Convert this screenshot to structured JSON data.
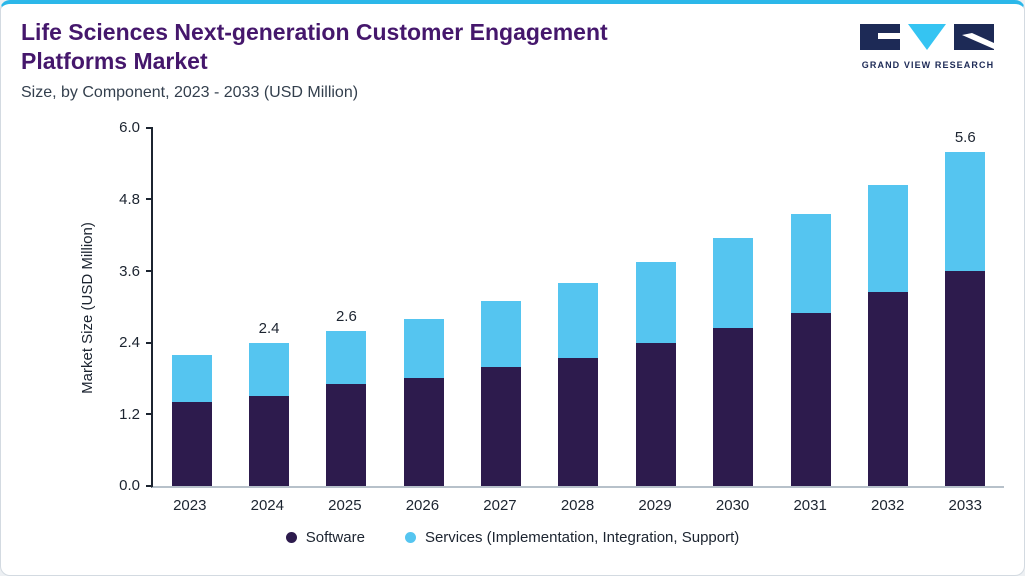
{
  "header": {
    "title_line1": "Life Sciences Next-generation Customer Engagement",
    "title_line2": "Platforms Market",
    "subtitle": "Size, by Component, 2023 - 2033 (USD Million)",
    "logo_text": "GRAND VIEW RESEARCH"
  },
  "colors": {
    "title": "#45176c",
    "accent_top": "#2bb7e9",
    "software": "#2d1b4d",
    "services": "#55c5f0",
    "logo_navy": "#1d2a56"
  },
  "chart_data": {
    "type": "bar",
    "stacked": true,
    "title": "Life Sciences Next-generation Customer Engagement Platforms Market",
    "subtitle": "Size, by Component, 2023 - 2033 (USD Million)",
    "xlabel": "",
    "ylabel": "Market Size (USD Million)",
    "ylim": [
      0,
      6.0
    ],
    "yticks": [
      "6.0",
      "4.8",
      "3.6",
      "2.4",
      "1.2",
      "0.0"
    ],
    "grid": false,
    "legend_position": "bottom",
    "categories": [
      "2023",
      "2024",
      "2025",
      "2026",
      "2027",
      "2028",
      "2029",
      "2030",
      "2031",
      "2032",
      "2033"
    ],
    "series": [
      {
        "name": "Software",
        "color": "#2d1b4d",
        "values": [
          1.4,
          1.5,
          1.7,
          1.8,
          2.0,
          2.15,
          2.4,
          2.65,
          2.9,
          3.25,
          3.6
        ]
      },
      {
        "name": "Services (Implementation, Integration, Support)",
        "color": "#55c5f0",
        "values": [
          0.8,
          0.9,
          0.9,
          1.0,
          1.1,
          1.25,
          1.35,
          1.5,
          1.65,
          1.8,
          2.0
        ]
      }
    ],
    "totals": [
      2.2,
      2.4,
      2.6,
      2.8,
      3.1,
      3.4,
      3.75,
      4.15,
      4.55,
      5.05,
      5.6
    ],
    "totals_labels": [
      "",
      "2.4",
      "2.6",
      "",
      "",
      "",
      "",
      "",
      "",
      "",
      "5.6"
    ]
  },
  "legend": {
    "items": [
      {
        "label": "Software",
        "color": "#2d1b4d"
      },
      {
        "label": "Services (Implementation, Integration, Support)",
        "color": "#55c5f0"
      }
    ]
  }
}
